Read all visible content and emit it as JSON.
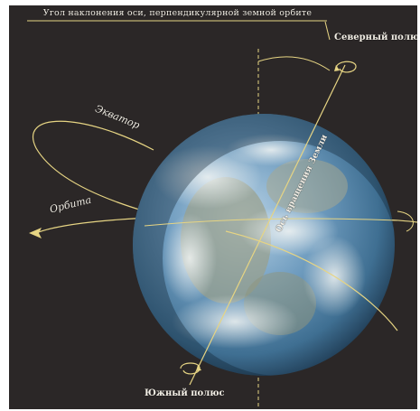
{
  "labels": {
    "title": "Угол наклонения оси, перпендикулярной земной орбите",
    "north_pole": "Северный полюс",
    "south_pole": "Южный полюс",
    "equator": "Экватор",
    "orbit": "Орбита",
    "axis": "Ось вращения Земли"
  },
  "colors": {
    "background": "#2b2727",
    "lines": "#e6d483",
    "text": "#f3efe6",
    "ocean": "#5f8fb0",
    "land": "#9a9f8a"
  },
  "icons": {
    "rotation_arrow": "curved-arrow-icon",
    "orbit_direction": "arrowhead-icon"
  }
}
